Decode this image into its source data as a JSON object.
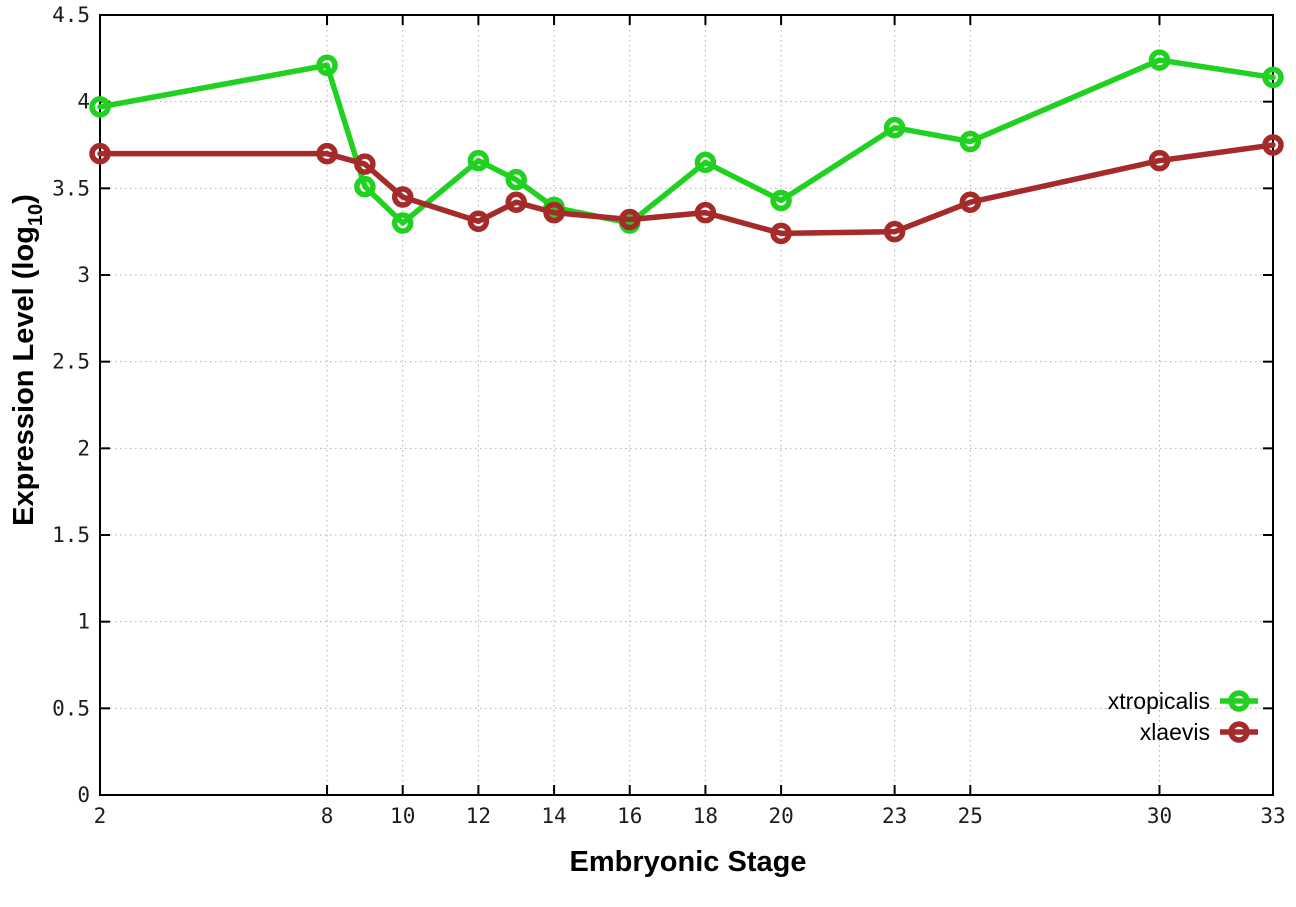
{
  "chart_data": {
    "type": "line",
    "title": "",
    "xlabel": "Embryonic Stage",
    "ylabel": "Expression Level (log10)",
    "ylabel_parts": {
      "prefix": "Expression Level (log",
      "sub": "10",
      "suffix": ")"
    },
    "xlim": [
      2,
      33
    ],
    "ylim": [
      0,
      4.5
    ],
    "x_ticks": [
      2,
      8,
      10,
      12,
      14,
      16,
      18,
      20,
      23,
      25,
      30,
      33
    ],
    "y_ticks": [
      0,
      0.5,
      1,
      1.5,
      2,
      2.5,
      3,
      3.5,
      4,
      4.5
    ],
    "grid": true,
    "grid_style": "dotted",
    "legend_position": "inside-bottom-right",
    "x": [
      2,
      8,
      9,
      10,
      12,
      13,
      14,
      16,
      18,
      20,
      23,
      25,
      30,
      33
    ],
    "series": [
      {
        "name": "xtropicalis",
        "color": "#21d121",
        "marker": "open-circle",
        "values": [
          3.97,
          4.21,
          3.51,
          3.3,
          3.66,
          3.55,
          3.39,
          3.3,
          3.65,
          3.43,
          3.85,
          3.77,
          4.24,
          4.14
        ]
      },
      {
        "name": "xlaevis",
        "color": "#a52a2a",
        "marker": "open-circle",
        "values": [
          3.7,
          3.7,
          3.64,
          3.45,
          3.31,
          3.42,
          3.36,
          3.32,
          3.36,
          3.24,
          3.25,
          3.42,
          3.66,
          3.75
        ]
      }
    ],
    "colors": {
      "border": "#000000",
      "grid": "#b0b0b0",
      "tick_text": "#1c1c1c"
    }
  }
}
